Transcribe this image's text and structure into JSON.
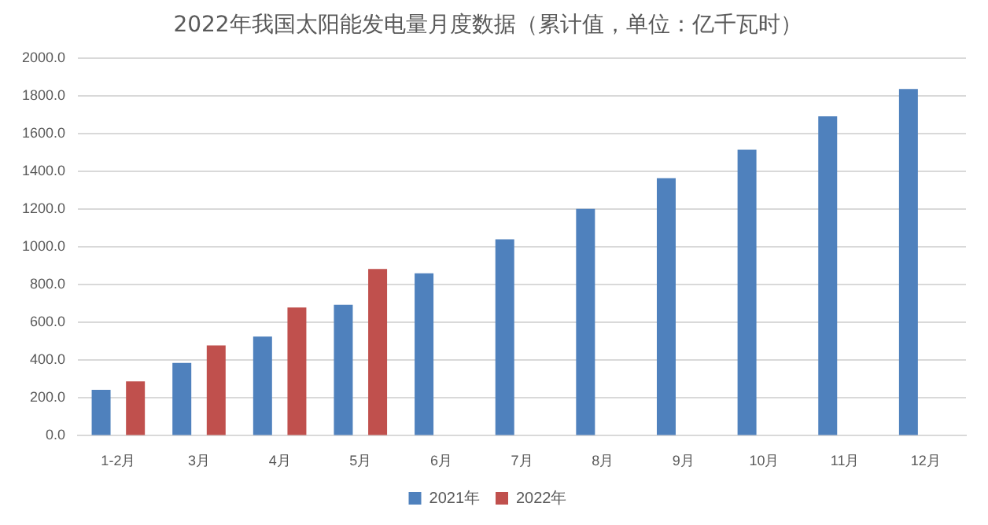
{
  "chart_data": {
    "type": "bar",
    "title": "2022年我国太阳能发电量月度数据（累计值，单位：亿千瓦时）",
    "categories": [
      "1-2月",
      "3月",
      "4月",
      "5月",
      "6月",
      "7月",
      "8月",
      "9月",
      "10月",
      "11月",
      "12月"
    ],
    "series": [
      {
        "name": "2021年",
        "color": "#4f81bd",
        "values": [
          243,
          385,
          525,
          693,
          860,
          1039,
          1201,
          1363,
          1514,
          1690,
          1835
        ]
      },
      {
        "name": "2022年",
        "color": "#c0504d",
        "values": [
          288,
          478,
          679,
          883,
          null,
          null,
          null,
          null,
          null,
          null,
          null
        ]
      }
    ],
    "ylim": [
      0,
      2000
    ],
    "yticks": [
      {
        "value": 0,
        "label": "0.0"
      },
      {
        "value": 200,
        "label": "200.0"
      },
      {
        "value": 400,
        "label": "400.0"
      },
      {
        "value": 600,
        "label": "600.0"
      },
      {
        "value": 800,
        "label": "800.0"
      },
      {
        "value": 1000,
        "label": "1000.0"
      },
      {
        "value": 1200,
        "label": "1200.0"
      },
      {
        "value": 1400,
        "label": "1400.0"
      },
      {
        "value": 1600,
        "label": "1600.0"
      },
      {
        "value": 1800,
        "label": "1800.0"
      },
      {
        "value": 2000,
        "label": "2000.0"
      }
    ],
    "grid": "y",
    "legend": "bottom"
  }
}
